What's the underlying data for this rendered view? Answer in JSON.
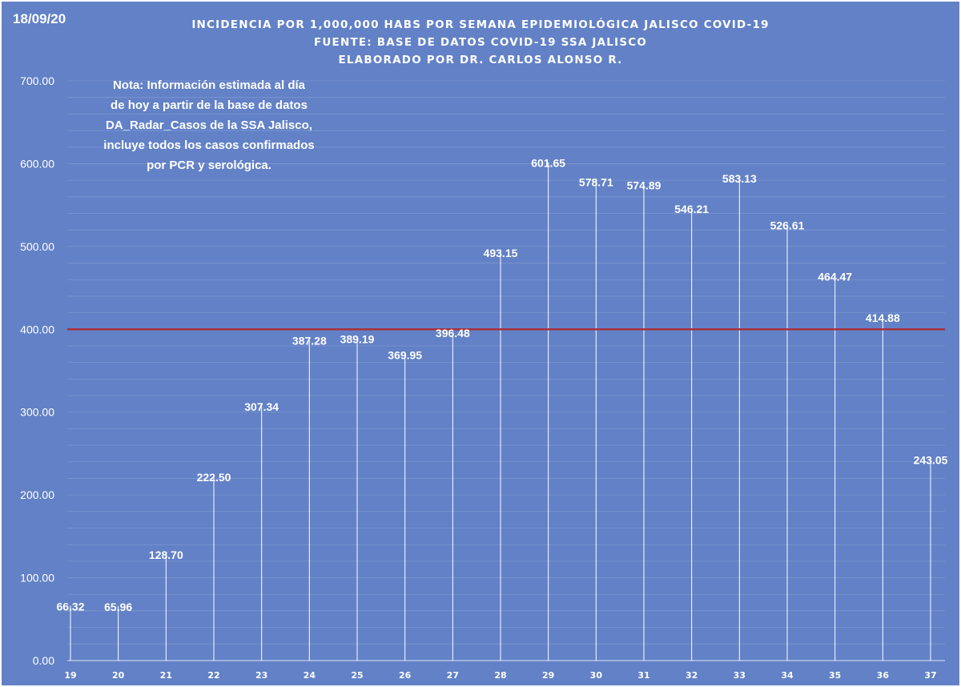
{
  "date": "18/09/20",
  "titles": [
    "INCIDENCIA POR 1,000,000 HABS POR SEMANA EPIDEMIOLÓGICA JALISCO COVID-19",
    "FUENTE: BASE DE DATOS COVID-19 SSA JALISCO",
    "ELABORADO POR DR. CARLOS ALONSO R."
  ],
  "note": [
    "Nota: Información estimada al día",
    "de hoy a partir de la base de datos",
    "DA_Radar_Casos de la SSA Jalisco,",
    "incluye todos los casos confirmados",
    "por PCR y serológica."
  ],
  "colors": {
    "background": "#6281c6",
    "gridline": "#7d96d2",
    "stem": "#ffffff",
    "reference_line": "#a8303e",
    "text": "#ffffff"
  },
  "chart_data": {
    "type": "bar",
    "categories": [
      "19",
      "20",
      "21",
      "22",
      "23",
      "24",
      "25",
      "26",
      "27",
      "28",
      "29",
      "30",
      "31",
      "32",
      "33",
      "34",
      "35",
      "36",
      "37"
    ],
    "values": [
      66.32,
      65.96,
      128.7,
      222.5,
      307.34,
      387.28,
      389.19,
      369.95,
      396.48,
      493.15,
      601.65,
      578.71,
      574.89,
      546.21,
      583.13,
      526.61,
      464.47,
      414.88,
      243.05
    ],
    "value_labels": [
      "66.32",
      "65.96",
      "128.70",
      "222.50",
      "307.34",
      "387.28",
      "389.19",
      "369.95",
      "396.48",
      "493.15",
      "601.65",
      "578.71",
      "574.89",
      "546.21",
      "583.13",
      "526.61",
      "464.47",
      "414.88",
      "243.05"
    ],
    "ylim": [
      0,
      700
    ],
    "yticks": [
      0,
      100,
      200,
      300,
      400,
      500,
      600,
      700
    ],
    "ytick_labels": [
      "0.00",
      "100.00",
      "200.00",
      "300.00",
      "400.00",
      "500.00",
      "600.00",
      "700.00"
    ],
    "reference_line": 400,
    "grid": true,
    "legend": "none"
  }
}
